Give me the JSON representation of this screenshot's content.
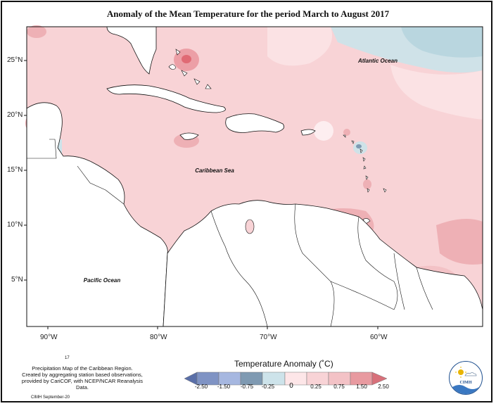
{
  "title": "Anomaly of the Mean Temperature for the period March to August 2017",
  "map": {
    "lat_labels": [
      "25°N",
      "20°N",
      "15°N",
      "10°N",
      "5°N"
    ],
    "lon_labels": [
      "90°W",
      "80°W",
      "70°W",
      "60°W"
    ],
    "region_labels": {
      "atlantic": "Atlantic Ocean",
      "caribbean": "Caribbean Sea",
      "pacific": "Pacific Ocean"
    }
  },
  "legend": {
    "title": "Temperature Anomaly (˚C)",
    "ticks": [
      "-2.50",
      "-1.50",
      "-0.75",
      "-0.25",
      "0",
      "0.25",
      "0.75",
      "1.50",
      "2.50"
    ],
    "colors": [
      "#5a6fa8",
      "#7f93c4",
      "#a6b7e0",
      "#7f9ab2",
      "#cde3ea",
      "#fde6e8",
      "#f3c2c6",
      "#e89aa0",
      "#d8707a"
    ]
  },
  "footer": {
    "page_number": "17",
    "note_line1": "Precipitation Map of the Caribbean Region.",
    "note_line2": "Created by aggregating station based observations,",
    "note_line3": "provided by CariCOF, with NCEP/NCAR Reanalysis Data.",
    "credit": "CIMH September-20"
  },
  "logo": {
    "text": "CIMH"
  }
}
